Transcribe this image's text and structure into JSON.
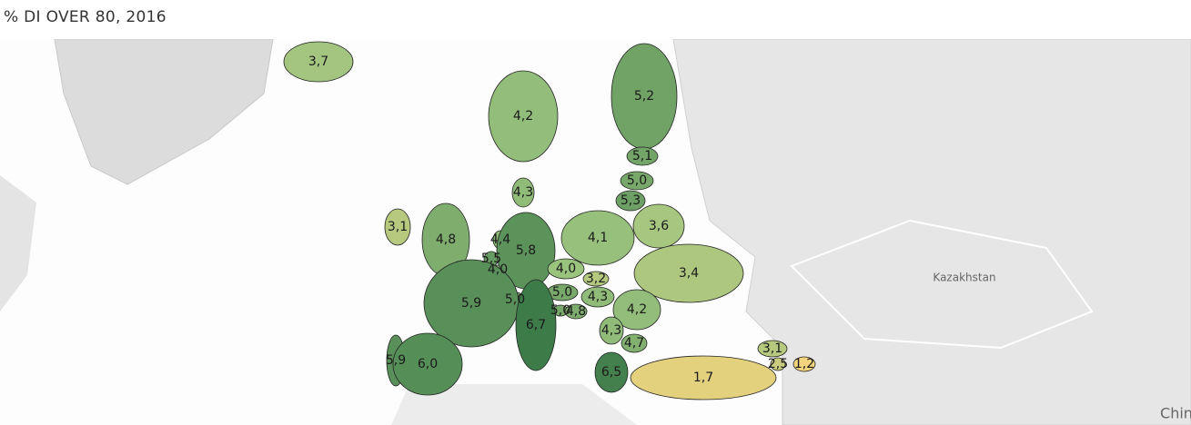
{
  "title": "% DI OVER 80, 2016",
  "color_scale": [
    "#f3d47e",
    "#9cc47f",
    "#3d7b49"
  ],
  "regions": [
    {
      "value": 3.7,
      "label": "3,7"
    },
    {
      "value": 4.2,
      "label": "4,2"
    },
    {
      "value": 5.2,
      "label": "5,2"
    },
    {
      "value": 5.1,
      "label": "5,1"
    },
    {
      "value": 5.0,
      "label": "5,0"
    },
    {
      "value": 5.3,
      "label": "5,3"
    },
    {
      "value": 4.3,
      "label": "4,3"
    },
    {
      "value": 3.1,
      "label": "3,1"
    },
    {
      "value": 4.8,
      "label": "4,8"
    },
    {
      "value": 4.4,
      "label": "4,4"
    },
    {
      "value": 5.5,
      "label": "5,5"
    },
    {
      "value": 4.0,
      "label": "4,0"
    },
    {
      "value": 5.8,
      "label": "5,8"
    },
    {
      "value": 4.1,
      "label": "4,1"
    },
    {
      "value": 3.6,
      "label": "3,6"
    },
    {
      "value": 4.0,
      "label": "4,0"
    },
    {
      "value": 3.2,
      "label": "3,2"
    },
    {
      "value": 3.4,
      "label": "3,4"
    },
    {
      "value": 5.0,
      "label": "5,0"
    },
    {
      "value": 4.3,
      "label": "4,3"
    },
    {
      "value": 5.0,
      "label": "5,0"
    },
    {
      "value": 5.0,
      "label": "5,0"
    },
    {
      "value": 4.8,
      "label": "4,8"
    },
    {
      "value": 5.9,
      "label": "5,9"
    },
    {
      "value": 4.2,
      "label": "4,2"
    },
    {
      "value": 4.3,
      "label": "4,3"
    },
    {
      "value": 4.7,
      "label": "4,7"
    },
    {
      "value": 6.7,
      "label": "6,7"
    },
    {
      "value": 6.5,
      "label": "6,5"
    },
    {
      "value": 5.9,
      "label": "5,9"
    },
    {
      "value": 6.0,
      "label": "6,0"
    },
    {
      "value": 1.7,
      "label": "1,7"
    },
    {
      "value": 3.1,
      "label": "3,1"
    },
    {
      "value": 2.5,
      "label": "2,5"
    },
    {
      "value": 1.2,
      "label": "1,2"
    }
  ],
  "map_labels": [
    "Kazakhstan",
    "Chin"
  ]
}
